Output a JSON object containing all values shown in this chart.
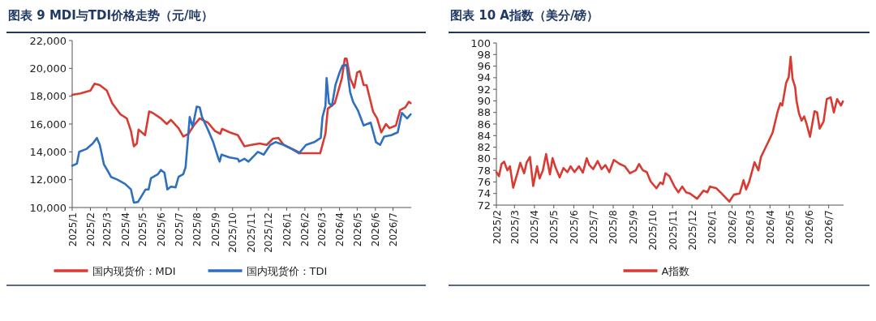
{
  "chart_data": [
    {
      "type": "line",
      "title": "图表 9  MDI与TDI价格走势（元/吨）",
      "legend": "bottom",
      "grid": false,
      "marker": "none",
      "line_style": "solid",
      "xlim": [
        "2025-01-01",
        "2026-08-01"
      ],
      "xticks": [
        {
          "value": "2025-01-01",
          "label": "2025/1"
        },
        {
          "value": "2025-02-01",
          "label": "2025/2"
        },
        {
          "value": "2025-03-01",
          "label": "2025/3"
        },
        {
          "value": "2025-04-01",
          "label": "2025/4"
        },
        {
          "value": "2025-05-01",
          "label": "2025/5"
        },
        {
          "value": "2025-06-01",
          "label": "2025/6"
        },
        {
          "value": "2025-07-01",
          "label": "2025/7"
        },
        {
          "value": "2025-08-01",
          "label": "2025/8"
        },
        {
          "value": "2025-09-01",
          "label": "2025/9"
        },
        {
          "value": "2025-10-01",
          "label": "2025/10"
        },
        {
          "value": "2025-11-01",
          "label": "2025/11"
        },
        {
          "value": "2025-12-01",
          "label": "2025/12"
        },
        {
          "value": "2026-01-01",
          "label": "2026/1"
        },
        {
          "value": "2026-02-01",
          "label": "2026/2"
        },
        {
          "value": "2026-03-01",
          "label": "2026/3"
        },
        {
          "value": "2026-04-01",
          "label": "2026/4"
        },
        {
          "value": "2026-05-01",
          "label": "2026/5"
        },
        {
          "value": "2026-06-01",
          "label": "2026/6"
        },
        {
          "value": "2026-07-01",
          "label": "2026/7"
        }
      ],
      "ylim": [
        10000,
        22000
      ],
      "yticks": [
        {
          "value": 10000,
          "label": "10,000"
        },
        {
          "value": 12000,
          "label": "12,000"
        },
        {
          "value": 14000,
          "label": "14,000"
        },
        {
          "value": 16000,
          "label": "16,000"
        },
        {
          "value": 18000,
          "label": "18,000"
        },
        {
          "value": 20000,
          "label": "20,000"
        },
        {
          "value": 22000,
          "label": "22,000"
        }
      ],
      "series": [
        {
          "name": "国内现货价：MDI",
          "color": "#d93a32",
          "x": [
            "2025-01-01",
            "2025-01-15",
            "2025-02-01",
            "2025-02-08",
            "2025-02-17",
            "2025-03-01",
            "2025-03-10",
            "2025-03-24",
            "2025-04-04",
            "2025-04-11",
            "2025-04-16",
            "2025-04-21",
            "2025-04-24",
            "2025-05-05",
            "2025-05-12",
            "2025-05-18",
            "2025-06-01",
            "2025-06-11",
            "2025-06-18",
            "2025-07-01",
            "2025-07-09",
            "2025-07-18",
            "2025-07-27",
            "2025-08-06",
            "2025-08-20",
            "2025-09-01",
            "2025-09-10",
            "2025-09-13",
            "2025-09-26",
            "2025-10-10",
            "2025-10-21",
            "2025-11-02",
            "2025-11-16",
            "2025-11-28",
            "2025-12-09",
            "2025-12-18",
            "2025-12-27",
            "2026-01-16",
            "2026-01-25",
            "2026-02-27",
            "2026-03-01",
            "2026-03-08",
            "2026-03-12",
            "2026-03-24",
            "2026-04-05",
            "2026-04-10",
            "2026-04-13",
            "2026-04-19",
            "2026-04-26",
            "2026-05-01",
            "2026-05-06",
            "2026-05-12",
            "2026-05-17",
            "2026-05-28",
            "2026-06-04",
            "2026-06-11",
            "2026-06-19",
            "2026-06-25",
            "2026-07-06",
            "2026-07-13",
            "2026-07-22",
            "2026-07-28",
            "2026-07-31"
          ],
          "values": [
            18100,
            18200,
            18400,
            18900,
            18800,
            18400,
            17500,
            16700,
            16400,
            15500,
            14400,
            14600,
            15600,
            15200,
            16900,
            16800,
            16400,
            16000,
            16300,
            15700,
            15100,
            15300,
            15900,
            16400,
            16100,
            15500,
            15300,
            15650,
            15400,
            15200,
            14400,
            14500,
            14600,
            14500,
            14950,
            15000,
            14500,
            14100,
            13900,
            13900,
            14200,
            15300,
            17100,
            17500,
            19300,
            20700,
            20700,
            19300,
            18600,
            19700,
            19800,
            18800,
            18800,
            16900,
            16400,
            15400,
            16000,
            15700,
            15900,
            17000,
            17200,
            17600,
            17500
          ]
        },
        {
          "name": "国内现货价：TDI",
          "color": "#2e6fc0",
          "x": [
            "2025-01-01",
            "2025-01-09",
            "2025-01-13",
            "2025-01-25",
            "2025-02-05",
            "2025-02-12",
            "2025-02-17",
            "2025-02-24",
            "2025-03-03",
            "2025-03-08",
            "2025-03-19",
            "2025-04-01",
            "2025-04-11",
            "2025-04-16",
            "2025-04-23",
            "2025-05-06",
            "2025-05-11",
            "2025-05-15",
            "2025-05-27",
            "2025-06-01",
            "2025-06-07",
            "2025-06-12",
            "2025-06-18",
            "2025-06-26",
            "2025-07-01",
            "2025-07-09",
            "2025-07-13",
            "2025-07-20",
            "2025-07-25",
            "2025-08-01",
            "2025-08-06",
            "2025-08-10",
            "2025-08-20",
            "2025-08-29",
            "2025-09-07",
            "2025-09-09",
            "2025-09-12",
            "2025-09-26",
            "2025-10-10",
            "2025-10-12",
            "2025-10-21",
            "2025-10-28",
            "2025-11-04",
            "2025-11-13",
            "2025-11-23",
            "2025-12-04",
            "2025-12-13",
            "2025-12-27",
            "2026-01-10",
            "2026-01-22",
            "2026-02-03",
            "2026-02-17",
            "2026-02-28",
            "2026-03-03",
            "2026-03-08",
            "2026-03-10",
            "2026-03-14",
            "2026-03-19",
            "2026-03-25",
            "2026-04-01",
            "2026-04-06",
            "2026-04-13",
            "2026-04-19",
            "2026-04-24",
            "2026-05-02",
            "2026-05-12",
            "2026-05-24",
            "2026-06-02",
            "2026-06-09",
            "2026-06-16",
            "2026-06-28",
            "2026-07-09",
            "2026-07-16",
            "2026-07-25",
            "2026-07-31"
          ],
          "values": [
            13000,
            13150,
            14000,
            14200,
            14600,
            15000,
            14500,
            13100,
            12600,
            12200,
            12000,
            11700,
            11300,
            10350,
            10400,
            11300,
            11300,
            12100,
            12400,
            12700,
            12500,
            11300,
            11500,
            11450,
            12200,
            12400,
            12900,
            16500,
            15800,
            17250,
            17200,
            16500,
            15600,
            14700,
            13500,
            13300,
            13800,
            13600,
            13500,
            13300,
            13500,
            13300,
            13600,
            14000,
            13800,
            14500,
            14700,
            14500,
            14200,
            13900,
            14500,
            14700,
            15000,
            16500,
            17300,
            19300,
            17500,
            17300,
            18800,
            19700,
            20200,
            20250,
            18300,
            17600,
            17000,
            15900,
            16100,
            14700,
            14500,
            15100,
            15200,
            15400,
            16800,
            16400,
            16700
          ]
        }
      ]
    },
    {
      "type": "line",
      "title": "图表 10  A指数（美分/磅）",
      "legend": "bottom",
      "grid": false,
      "marker": "none",
      "line_style": "solid",
      "xlim": [
        "2025-02-01",
        "2026-07-24"
      ],
      "xticks": [
        {
          "value": "2025-02-01",
          "label": "2025/2"
        },
        {
          "value": "2025-03-01",
          "label": "2025/3"
        },
        {
          "value": "2025-04-01",
          "label": "2025/4"
        },
        {
          "value": "2025-05-01",
          "label": "2025/5"
        },
        {
          "value": "2025-06-01",
          "label": "2025/6"
        },
        {
          "value": "2025-07-01",
          "label": "2025/7"
        },
        {
          "value": "2025-08-01",
          "label": "2025/8"
        },
        {
          "value": "2025-09-01",
          "label": "2025/9"
        },
        {
          "value": "2025-10-01",
          "label": "2025/10"
        },
        {
          "value": "2025-11-01",
          "label": "2025/11"
        },
        {
          "value": "2025-12-01",
          "label": "2025/12"
        },
        {
          "value": "2026-01-01",
          "label": "2026/1"
        },
        {
          "value": "2026-02-01",
          "label": "2026/2"
        },
        {
          "value": "2026-03-01",
          "label": "2026/3"
        },
        {
          "value": "2026-04-01",
          "label": "2026/4"
        },
        {
          "value": "2026-05-01",
          "label": "2026/5"
        },
        {
          "value": "2026-06-01",
          "label": "2026/6"
        },
        {
          "value": "2026-07-01",
          "label": "2026/7"
        }
      ],
      "ylim": [
        72,
        100
      ],
      "yticks": [
        72,
        74,
        76,
        78,
        80,
        82,
        84,
        86,
        88,
        90,
        92,
        94,
        96,
        98,
        100
      ],
      "series": [
        {
          "name": "A指数",
          "color": "#d93a32",
          "x": [
            "2025-02-01",
            "2025-02-05",
            "2025-02-09",
            "2025-02-13",
            "2025-02-18",
            "2025-02-22",
            "2025-02-27",
            "2025-03-06",
            "2025-03-10",
            "2025-03-16",
            "2025-03-20",
            "2025-03-25",
            "2025-03-30",
            "2025-04-05",
            "2025-04-09",
            "2025-04-14",
            "2025-04-19",
            "2025-04-25",
            "2025-04-29",
            "2025-05-04",
            "2025-05-10",
            "2025-05-16",
            "2025-05-22",
            "2025-05-27",
            "2025-06-02",
            "2025-06-09",
            "2025-06-15",
            "2025-06-21",
            "2025-06-25",
            "2025-07-01",
            "2025-07-08",
            "2025-07-14",
            "2025-07-20",
            "2025-07-26",
            "2025-08-02",
            "2025-08-11",
            "2025-08-19",
            "2025-08-27",
            "2025-09-05",
            "2025-09-10",
            "2025-09-16",
            "2025-09-22",
            "2025-09-28",
            "2025-10-07",
            "2025-10-13",
            "2025-10-17",
            "2025-10-21",
            "2025-10-27",
            "2025-11-04",
            "2025-11-10",
            "2025-11-16",
            "2025-11-22",
            "2025-11-28",
            "2025-12-09",
            "2025-12-19",
            "2025-12-25",
            "2025-12-29",
            "2026-01-08",
            "2026-01-16",
            "2026-01-22",
            "2026-01-28",
            "2026-02-04",
            "2026-02-13",
            "2026-02-19",
            "2026-02-23",
            "2026-02-28",
            "2026-03-08",
            "2026-03-14",
            "2026-03-18",
            "2026-03-28",
            "2026-04-05",
            "2026-04-13",
            "2026-04-17",
            "2026-04-20",
            "2026-04-26",
            "2026-04-30",
            "2026-05-03",
            "2026-05-06",
            "2026-05-10",
            "2026-05-12",
            "2026-05-16",
            "2026-05-20",
            "2026-05-24",
            "2026-05-28",
            "2026-06-02",
            "2026-06-09",
            "2026-06-13",
            "2026-06-17",
            "2026-06-23",
            "2026-06-28",
            "2026-07-04",
            "2026-07-09",
            "2026-07-14",
            "2026-07-20",
            "2026-07-23"
          ],
          "values": [
            77.7,
            77.0,
            79.1,
            79.5,
            78.0,
            78.7,
            75.0,
            77.7,
            79.3,
            77.5,
            79.4,
            80.3,
            75.3,
            78.7,
            76.6,
            78.0,
            80.8,
            77.3,
            80.1,
            78.4,
            76.8,
            78.4,
            77.7,
            78.7,
            77.7,
            78.7,
            77.6,
            80.1,
            78.9,
            78.2,
            79.6,
            78.2,
            78.9,
            77.7,
            79.8,
            79.1,
            78.7,
            77.5,
            78.0,
            79.1,
            78.0,
            77.7,
            76.1,
            74.9,
            75.9,
            75.6,
            77.5,
            77.0,
            75.2,
            74.2,
            75.2,
            74.2,
            74.0,
            73.1,
            74.5,
            74.2,
            75.2,
            74.9,
            74.0,
            73.3,
            72.6,
            73.8,
            74.0,
            76.3,
            74.7,
            76.1,
            79.4,
            78.0,
            80.3,
            82.6,
            84.5,
            88.2,
            89.6,
            89.2,
            93.1,
            94.1,
            97.6,
            93.8,
            92.4,
            90.1,
            87.8,
            86.6,
            87.3,
            85.9,
            83.8,
            88.2,
            88.0,
            85.2,
            86.4,
            90.3,
            90.6,
            88.0,
            90.3,
            89.2,
            89.9
          ]
        }
      ]
    }
  ]
}
